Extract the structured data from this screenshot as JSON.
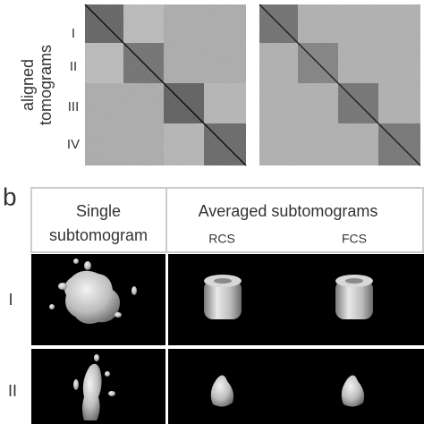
{
  "panel_a": {
    "y_label": [
      "aligned",
      "tomograms"
    ],
    "groups": [
      "I",
      "II",
      "III",
      "IV"
    ]
  },
  "panel_b": {
    "label": "b",
    "header": {
      "single": [
        "Single",
        "subtomogram"
      ],
      "averaged": "Averaged subtomograms",
      "methods": [
        "RCS",
        "FCS"
      ]
    },
    "rows": [
      "I",
      "II"
    ]
  }
}
